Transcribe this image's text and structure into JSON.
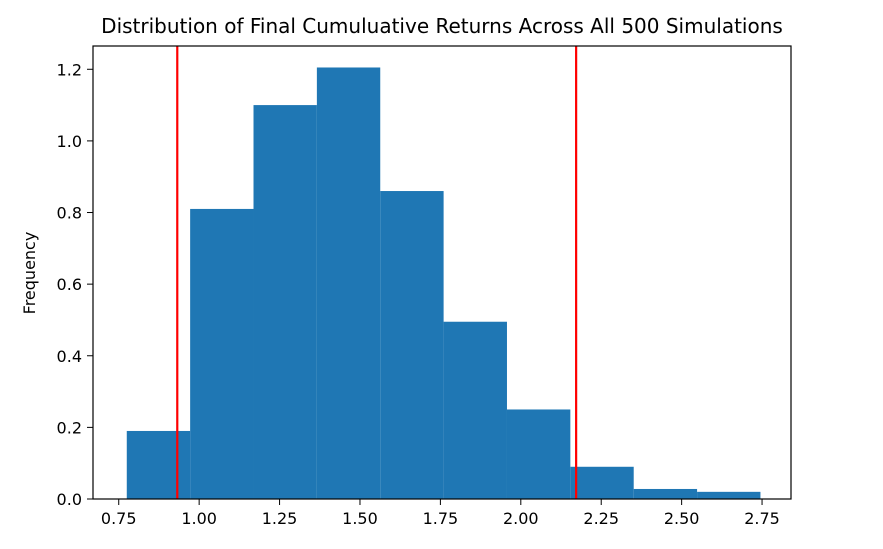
{
  "chart_data": {
    "type": "bar",
    "title": "Distribution of Final Cumuluative Returns Across All 500 Simulations",
    "xlabel": "",
    "ylabel": "Frequency",
    "xlim": [
      0.67,
      2.84
    ],
    "ylim": [
      0.0,
      1.265
    ],
    "bins": [
      {
        "x0": 0.775,
        "x1": 0.972,
        "value": 0.19
      },
      {
        "x0": 0.972,
        "x1": 1.169,
        "value": 0.81
      },
      {
        "x0": 1.169,
        "x1": 1.366,
        "value": 1.1
      },
      {
        "x0": 1.366,
        "x1": 1.563,
        "value": 1.205
      },
      {
        "x0": 1.563,
        "x1": 1.76,
        "value": 0.86
      },
      {
        "x0": 1.76,
        "x1": 1.957,
        "value": 0.495
      },
      {
        "x0": 1.957,
        "x1": 2.154,
        "value": 0.25
      },
      {
        "x0": 2.154,
        "x1": 2.351,
        "value": 0.09
      },
      {
        "x0": 2.351,
        "x1": 2.548,
        "value": 0.028
      },
      {
        "x0": 2.548,
        "x1": 2.745,
        "value": 0.02
      }
    ],
    "vlines": [
      0.932,
      2.172
    ],
    "vline_color": "#ff0000",
    "bar_color": "#1f77b4",
    "xticks": [
      0.75,
      1.0,
      1.25,
      1.5,
      1.75,
      2.0,
      2.25,
      2.5,
      2.75
    ],
    "xtick_labels": [
      "0.75",
      "1.00",
      "1.25",
      "1.50",
      "1.75",
      "2.00",
      "2.25",
      "2.50",
      "2.75"
    ],
    "yticks": [
      0.0,
      0.2,
      0.4,
      0.6,
      0.8,
      1.0,
      1.2
    ],
    "ytick_labels": [
      "0.0",
      "0.2",
      "0.4",
      "0.6",
      "0.8",
      "1.0",
      "1.2"
    ],
    "grid": false,
    "legend": "none"
  }
}
